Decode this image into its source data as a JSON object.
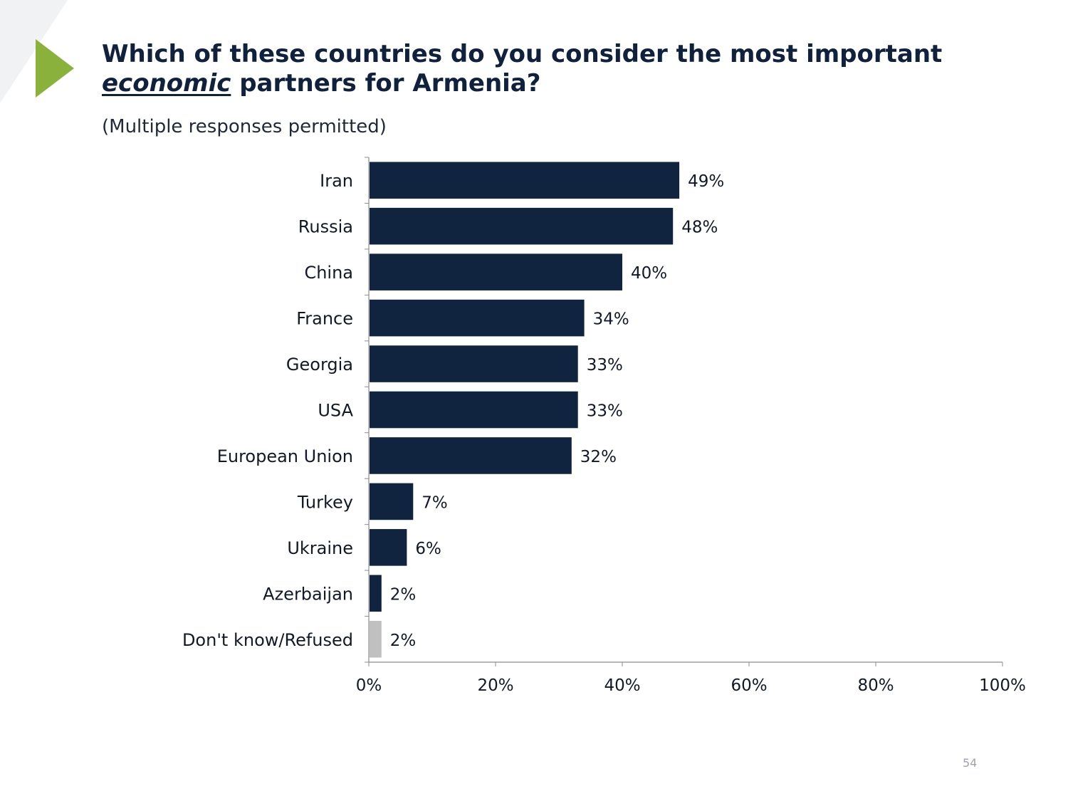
{
  "slide": {
    "title_before": "Which of these countries do you consider the most important ",
    "title_emphasis": "economic",
    "title_after": " partners for Armenia?",
    "subtitle": "(Multiple responses permitted)",
    "page_number": "54",
    "accent_color": "#8ab13b"
  },
  "chart_data": {
    "type": "bar",
    "orientation": "horizontal",
    "categories": [
      "Iran",
      "Russia",
      "China",
      "France",
      "Georgia",
      "USA",
      "European Union",
      "Turkey",
      "Ukraine",
      "Azerbaijan",
      "Don't know/Refused"
    ],
    "values": [
      49,
      48,
      40,
      34,
      33,
      33,
      32,
      7,
      6,
      2,
      2
    ],
    "data_labels": [
      "49%",
      "48%",
      "40%",
      "34%",
      "33%",
      "33%",
      "32%",
      "7%",
      "6%",
      "2%",
      "2%"
    ],
    "xlim": [
      0,
      100
    ],
    "x_ticks": [
      0,
      20,
      40,
      60,
      80,
      100
    ],
    "x_tick_labels": [
      "0%",
      "20%",
      "40%",
      "60%",
      "80%",
      "100%"
    ],
    "grid": false,
    "legend": "none",
    "bar_color": "#10233f",
    "highlight_color": "#c0c0c0",
    "highlight_category": "Don't know/Refused"
  }
}
